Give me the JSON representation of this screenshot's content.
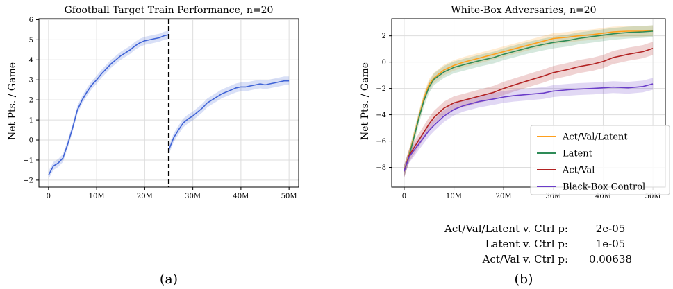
{
  "chart_data": [
    {
      "type": "line",
      "panel_label": "(a)",
      "title": "Gfootball Target Train Performance, n=20",
      "xlabel": "",
      "ylabel": "Net Pts. / Game",
      "xlim": [
        -2000000,
        52000000
      ],
      "ylim": [
        -2.35,
        6.05
      ],
      "xticks": [
        0,
        10000000,
        20000000,
        30000000,
        40000000,
        50000000
      ],
      "xtick_labels": [
        "0",
        "10M",
        "20M",
        "30M",
        "40M",
        "50M"
      ],
      "yticks": [
        -2,
        -1,
        0,
        1,
        2,
        3,
        4,
        5,
        6
      ],
      "ytick_labels": [
        "−2",
        "−1",
        "0",
        "1",
        "2",
        "3",
        "4",
        "5",
        "6"
      ],
      "grid": true,
      "vline": {
        "x": 25000000,
        "style": "dashed",
        "color": "#000000"
      },
      "series": [
        {
          "color": "#3f63d6",
          "band": 0.2,
          "x": [
            0,
            1000000,
            2000000,
            3000000,
            4000000,
            5000000,
            6000000,
            7000000,
            8000000,
            9000000,
            10000000,
            11000000,
            12000000,
            13000000,
            14000000,
            15000000,
            16000000,
            17000000,
            18000000,
            19000000,
            20000000,
            21000000,
            22000000,
            23000000,
            24000000,
            25000000
          ],
          "values": [
            -1.75,
            -1.3,
            -1.15,
            -0.9,
            -0.2,
            0.6,
            1.5,
            2.0,
            2.4,
            2.75,
            3.0,
            3.3,
            3.55,
            3.8,
            4.0,
            4.2,
            4.35,
            4.5,
            4.7,
            4.85,
            4.95,
            5.0,
            5.05,
            5.1,
            5.2,
            5.25
          ]
        },
        {
          "color": "#3f63d6",
          "band": 0.22,
          "x": [
            25000000,
            26000000,
            27000000,
            28000000,
            29000000,
            30000000,
            31000000,
            32000000,
            33000000,
            34000000,
            35000000,
            36000000,
            37000000,
            38000000,
            39000000,
            40000000,
            41000000,
            42000000,
            43000000,
            44000000,
            45000000,
            46000000,
            47000000,
            48000000,
            49000000,
            50000000
          ],
          "values": [
            -0.5,
            0.1,
            0.5,
            0.85,
            1.05,
            1.2,
            1.4,
            1.6,
            1.85,
            2.0,
            2.15,
            2.3,
            2.4,
            2.5,
            2.6,
            2.65,
            2.65,
            2.7,
            2.75,
            2.8,
            2.75,
            2.8,
            2.85,
            2.9,
            2.95,
            2.95
          ]
        }
      ]
    },
    {
      "type": "line",
      "panel_label": "(b)",
      "title": "White-Box Adversaries, n=20",
      "xlabel": "",
      "ylabel": "Net Pts. / Game",
      "xlim": [
        -2500000,
        52500000
      ],
      "ylim": [
        -9.5,
        3.3
      ],
      "xticks": [
        0,
        10000000,
        20000000,
        30000000,
        40000000,
        50000000
      ],
      "xtick_labels": [
        "0",
        "10M",
        "20M",
        "30M",
        "40M",
        "50M"
      ],
      "yticks": [
        -8,
        -6,
        -4,
        -2,
        0,
        2
      ],
      "ytick_labels": [
        "−8",
        "−6",
        "−4",
        "−2",
        "0",
        "2"
      ],
      "grid": true,
      "legend_placement": "lower right",
      "series": [
        {
          "name": "Act/Val/Latent",
          "color": "#ff9f1c",
          "band": 0.4,
          "x": [
            0,
            1000000,
            2000000,
            3000000,
            4000000,
            5000000,
            6000000,
            8000000,
            10000000,
            12000000,
            15000000,
            18000000,
            20000000,
            22000000,
            25000000,
            28000000,
            30000000,
            33000000,
            35000000,
            38000000,
            40000000,
            42000000,
            45000000,
            48000000,
            50000000
          ],
          "values": [
            -8.3,
            -7.0,
            -5.6,
            -4.1,
            -2.7,
            -1.7,
            -1.2,
            -0.6,
            -0.25,
            0.0,
            0.3,
            0.6,
            0.8,
            1.0,
            1.3,
            1.6,
            1.8,
            1.9,
            2.0,
            2.1,
            2.2,
            2.3,
            2.35,
            2.35,
            2.4
          ]
        },
        {
          "name": "Latent",
          "color": "#2e8b57",
          "band": 0.45,
          "x": [
            0,
            1000000,
            2000000,
            3000000,
            4000000,
            5000000,
            6000000,
            8000000,
            10000000,
            12000000,
            15000000,
            18000000,
            20000000,
            22000000,
            25000000,
            28000000,
            30000000,
            33000000,
            35000000,
            38000000,
            40000000,
            42000000,
            45000000,
            48000000,
            50000000
          ],
          "values": [
            -8.3,
            -7.1,
            -5.7,
            -4.2,
            -2.9,
            -1.9,
            -1.3,
            -0.75,
            -0.4,
            -0.2,
            0.1,
            0.35,
            0.6,
            0.8,
            1.1,
            1.35,
            1.5,
            1.65,
            1.8,
            1.95,
            2.05,
            2.15,
            2.25,
            2.3,
            2.35
          ]
        },
        {
          "name": "Act/Val",
          "color": "#b22222",
          "band": 0.5,
          "x": [
            0,
            1000000,
            2000000,
            3000000,
            4000000,
            5000000,
            6000000,
            8000000,
            10000000,
            12000000,
            15000000,
            18000000,
            20000000,
            22000000,
            25000000,
            28000000,
            30000000,
            33000000,
            35000000,
            38000000,
            40000000,
            42000000,
            45000000,
            48000000,
            50000000
          ],
          "values": [
            -8.3,
            -7.1,
            -6.5,
            -5.9,
            -5.3,
            -4.7,
            -4.2,
            -3.5,
            -3.1,
            -2.9,
            -2.6,
            -2.3,
            -2.0,
            -1.75,
            -1.4,
            -1.05,
            -0.8,
            -0.55,
            -0.35,
            -0.15,
            0.05,
            0.35,
            0.6,
            0.8,
            1.05
          ]
        },
        {
          "name": "Black-Box Control",
          "color": "#6a3cc9",
          "band": 0.45,
          "x": [
            0,
            1000000,
            2000000,
            3000000,
            4000000,
            5000000,
            6000000,
            8000000,
            10000000,
            12000000,
            15000000,
            18000000,
            20000000,
            22000000,
            25000000,
            28000000,
            30000000,
            33000000,
            35000000,
            38000000,
            40000000,
            42000000,
            45000000,
            48000000,
            50000000
          ],
          "values": [
            -8.3,
            -7.2,
            -6.7,
            -6.2,
            -5.7,
            -5.2,
            -4.8,
            -4.1,
            -3.6,
            -3.3,
            -3.0,
            -2.8,
            -2.65,
            -2.55,
            -2.45,
            -2.35,
            -2.2,
            -2.1,
            -2.05,
            -2.0,
            -1.95,
            -1.9,
            -1.95,
            -1.85,
            -1.65
          ]
        }
      ],
      "pvalues": [
        {
          "label": "Act/Val/Latent v. Ctrl p:",
          "value": "2e-05"
        },
        {
          "label": "Latent v. Ctrl p:",
          "value": "1e-05"
        },
        {
          "label": "Act/Val v. Ctrl p:",
          "value": "0.00638"
        }
      ]
    }
  ]
}
